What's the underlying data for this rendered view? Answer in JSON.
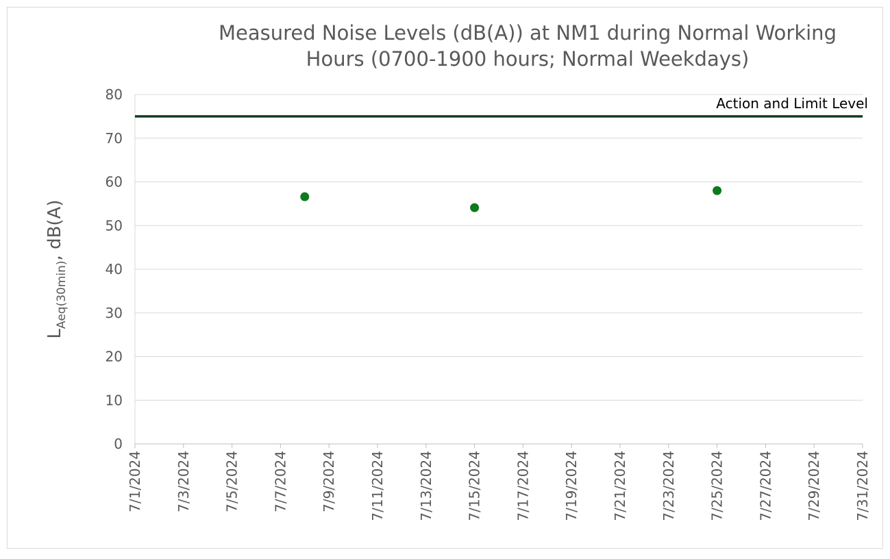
{
  "chart_data": {
    "type": "scatter",
    "title": [
      "Measured Noise Levels (dB(A)) at NM1 during Normal Working",
      "Hours (0700-1900 hours; Normal Weekdays)"
    ],
    "y_label": {
      "main": "L",
      "subscript": "Aeq(30min)",
      "suffix": ", dB(A)"
    },
    "xlim": [
      "7/1/2024",
      "7/31/2024"
    ],
    "xticks": [
      "7/1/2024",
      "7/3/2024",
      "7/5/2024",
      "7/7/2024",
      "7/9/2024",
      "7/11/2024",
      "7/13/2024",
      "7/15/2024",
      "7/17/2024",
      "7/19/2024",
      "7/21/2024",
      "7/23/2024",
      "7/25/2024",
      "7/27/2024",
      "7/29/2024",
      "7/31/2024"
    ],
    "ylim": [
      0,
      80
    ],
    "yticks": [
      0,
      10,
      20,
      30,
      40,
      50,
      60,
      70,
      80
    ],
    "grid": true,
    "series": [
      {
        "type": "scatter",
        "color": "#0e7a1e",
        "x": [
          "7/8/2024",
          "7/15/2024",
          "7/25/2024"
        ],
        "values": [
          56.6,
          54.1,
          58.0
        ]
      },
      {
        "type": "line",
        "name": "Action and Limit Level",
        "color": "#0f3d1f",
        "x": [
          "7/1/2024",
          "7/31/2024"
        ],
        "values": [
          75,
          75
        ]
      }
    ]
  }
}
